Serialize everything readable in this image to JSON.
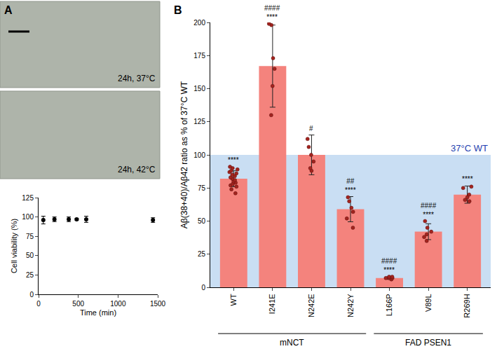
{
  "panel_labels": [
    "A",
    "B"
  ],
  "images": [
    {
      "caption": "24h, 37°C"
    },
    {
      "caption": "24h, 42°C"
    }
  ],
  "chart_data": [
    {
      "type": "scatter",
      "x_label": "Time (min)",
      "y_label": "Cell viability (%)",
      "x": [
        60,
        200,
        380,
        480,
        600,
        1440
      ],
      "values": [
        96,
        97,
        97,
        97,
        97,
        96
      ],
      "errors": [
        5,
        3,
        3,
        1,
        4,
        3
      ],
      "xlim": [
        0,
        1500
      ],
      "xticks": [
        0,
        500,
        1000,
        1500
      ],
      "ylim": [
        0,
        125
      ],
      "yticks": [
        0,
        25,
        50,
        75,
        100,
        125
      ],
      "color": "#000000",
      "marker": "circle",
      "grid": false
    },
    {
      "type": "bar",
      "y_label": "Aβ(38+40)/Aβ42 ratio as % of 37°C WT",
      "categories": [
        "WT",
        "I241E",
        "N242E",
        "N242Y",
        "L166P",
        "V89L",
        "R269H"
      ],
      "values": [
        82,
        167,
        100,
        59,
        7,
        42,
        70
      ],
      "errors": [
        6,
        31,
        15,
        9.5,
        1,
        6,
        6.5
      ],
      "points": [
        [
          91,
          90,
          89,
          88,
          87,
          86,
          85,
          84,
          83,
          82,
          81,
          80,
          79,
          78,
          77,
          76,
          74,
          71
        ],
        [
          199,
          198,
          173,
          165,
          152,
          130
        ],
        [
          112,
          106,
          100,
          95,
          90,
          88
        ],
        [
          68,
          65,
          60,
          57,
          52,
          45
        ],
        [
          6,
          7,
          7,
          7,
          8,
          8
        ],
        [
          50,
          45,
          42,
          40,
          38,
          35
        ],
        [
          76,
          75,
          70,
          68,
          66,
          65
        ]
      ],
      "significance": [
        [
          "****"
        ],
        [
          "####",
          "****"
        ],
        [
          "#"
        ],
        [
          "##",
          "****"
        ],
        [
          "####",
          "****"
        ],
        [
          "####",
          "****"
        ],
        [
          "****"
        ]
      ],
      "groups": [
        {
          "label": "mNCT",
          "categories": [
            "WT",
            "I241E",
            "N242E",
            "N242Y"
          ]
        },
        {
          "label": "FAD PSEN1",
          "categories": [
            "L166P",
            "V89L",
            "R269H"
          ]
        }
      ],
      "reference": {
        "value": 100,
        "label": "37°C WT"
      },
      "color": "#f4837d",
      "ylim": [
        0,
        200
      ],
      "yticks": [
        0,
        25,
        50,
        75,
        100,
        125,
        150,
        175,
        200
      ],
      "grid": false
    }
  ]
}
